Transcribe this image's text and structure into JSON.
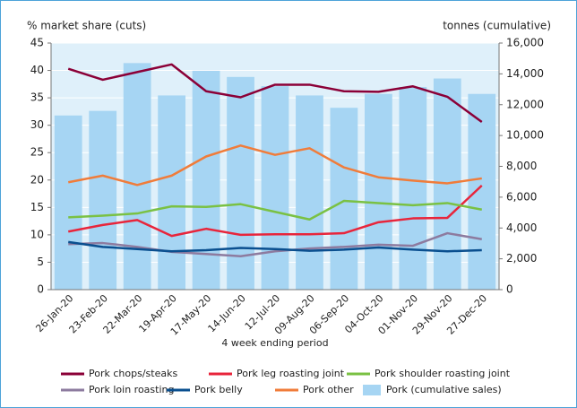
{
  "chart_data": {
    "type": "combo",
    "y_title": "% market share (cuts)",
    "y2_title": "tonnes (cumulative)",
    "x_title": "4 week ending period",
    "categories": [
      "26-Jan-20",
      "23-Feb-20",
      "22-Mar-20",
      "19-Apr-20",
      "17-May-20",
      "14-Jun-20",
      "12-Jul-20",
      "09-Aug-20",
      "06-Sep-20",
      "04-Oct-20",
      "01-Nov-20",
      "29-Nov-20",
      "27-Dec-20"
    ],
    "ylim": [
      0,
      45
    ],
    "yticks": [
      0,
      5,
      10,
      15,
      20,
      25,
      30,
      35,
      40,
      45
    ],
    "y2lim": [
      0,
      16000
    ],
    "y2ticks": [
      0,
      {
        "value": 2000,
        "label": "2,000"
      },
      {
        "value": 4000,
        "label": "4,000"
      },
      {
        "value": 6000,
        "label": "6,000"
      },
      {
        "value": 8000,
        "label": "8,000"
      },
      {
        "value": 10000,
        "label": "10,000"
      },
      {
        "value": 12000,
        "label": "12,000"
      },
      {
        "value": 14000,
        "label": "14,000"
      },
      {
        "value": 16000,
        "label": "16,000"
      }
    ],
    "grid": true,
    "series": [
      {
        "name": "Pork chops/steaks",
        "type": "line",
        "color": "#8b0037",
        "values": [
          40.3,
          38.3,
          39.7,
          41.1,
          36.2,
          35.1,
          37.4,
          37.4,
          36.2,
          36.1,
          37.1,
          35.2,
          30.6
        ]
      },
      {
        "name": "Pork leg roasting joint",
        "type": "line",
        "color": "#e8253b",
        "values": [
          10.6,
          11.8,
          12.7,
          9.8,
          11.1,
          10.0,
          10.1,
          10.1,
          10.3,
          12.3,
          13.0,
          13.1,
          19.0
        ]
      },
      {
        "name": "Pork shoulder roasting joint",
        "type": "line",
        "color": "#7ac143",
        "values": [
          13.2,
          13.5,
          13.9,
          15.2,
          15.1,
          15.6,
          14.2,
          12.8,
          16.2,
          15.8,
          15.4,
          15.8,
          14.6
        ]
      },
      {
        "name": "Pork loin roasting",
        "type": "line",
        "color": "#8d7b9f",
        "values": [
          8.3,
          8.5,
          7.8,
          6.9,
          6.5,
          6.1,
          7.0,
          7.5,
          7.8,
          8.2,
          8.0,
          10.3,
          9.2
        ]
      },
      {
        "name": "Pork belly",
        "type": "line",
        "color": "#0a4f8f",
        "values": [
          8.7,
          7.8,
          7.4,
          7.0,
          7.2,
          7.6,
          7.4,
          7.1,
          7.3,
          7.7,
          7.3,
          7.0,
          7.2
        ]
      },
      {
        "name": "Pork other",
        "type": "line",
        "color": "#f07c3a",
        "values": [
          19.6,
          20.8,
          19.1,
          20.8,
          24.3,
          26.3,
          24.6,
          25.8,
          22.3,
          20.5,
          19.9,
          19.4,
          20.3
        ]
      },
      {
        "name": "Pork (cumulative sales)",
        "type": "bar",
        "axis": "y2",
        "color": "#a6d5f3",
        "values": [
          11300,
          11600,
          14700,
          12600,
          14200,
          13800,
          13200,
          12600,
          11800,
          12700,
          13150,
          13700,
          12700
        ]
      }
    ]
  }
}
